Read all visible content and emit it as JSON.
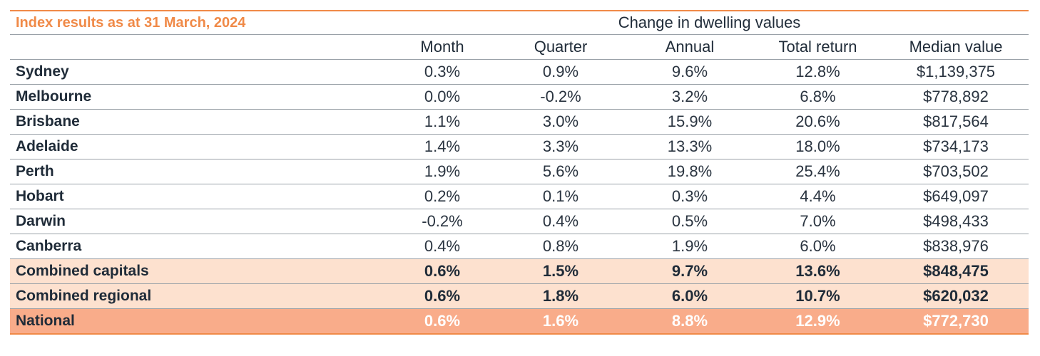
{
  "header": {
    "title": "Index results as at 31 March, 2024",
    "group_label": "Change in dwelling values"
  },
  "columns": [
    "Month",
    "Quarter",
    "Annual",
    "Total return",
    "Median value"
  ],
  "rows": [
    {
      "region": "Sydney",
      "month": "0.3%",
      "quarter": "0.9%",
      "annual": "9.6%",
      "total_return": "12.8%",
      "median": "$1,139,375"
    },
    {
      "region": "Melbourne",
      "month": "0.0%",
      "quarter": "-0.2%",
      "annual": "3.2%",
      "total_return": "6.8%",
      "median": "$778,892"
    },
    {
      "region": "Brisbane",
      "month": "1.1%",
      "quarter": "3.0%",
      "annual": "15.9%",
      "total_return": "20.6%",
      "median": "$817,564"
    },
    {
      "region": "Adelaide",
      "month": "1.4%",
      "quarter": "3.3%",
      "annual": "13.3%",
      "total_return": "18.0%",
      "median": "$734,173"
    },
    {
      "region": "Perth",
      "month": "1.9%",
      "quarter": "5.6%",
      "annual": "19.8%",
      "total_return": "25.4%",
      "median": "$703,502"
    },
    {
      "region": "Hobart",
      "month": "0.2%",
      "quarter": "0.1%",
      "annual": "0.3%",
      "total_return": "4.4%",
      "median": "$649,097"
    },
    {
      "region": "Darwin",
      "month": "-0.2%",
      "quarter": "0.4%",
      "annual": "0.5%",
      "total_return": "7.0%",
      "median": "$498,433"
    },
    {
      "region": "Canberra",
      "month": "0.4%",
      "quarter": "0.8%",
      "annual": "1.9%",
      "total_return": "6.0%",
      "median": "$838,976"
    },
    {
      "region": "Combined capitals",
      "month": "0.6%",
      "quarter": "1.5%",
      "annual": "9.7%",
      "total_return": "13.6%",
      "median": "$848,475"
    },
    {
      "region": "Combined regional",
      "month": "0.6%",
      "quarter": "1.8%",
      "annual": "6.0%",
      "total_return": "10.7%",
      "median": "$620,032"
    },
    {
      "region": "National",
      "month": "0.6%",
      "quarter": "1.6%",
      "annual": "8.8%",
      "total_return": "12.9%",
      "median": "$772,730"
    }
  ],
  "colors": {
    "accent": "#f08a48",
    "highlight_row": "#fde1cf",
    "national_row": "#f9ac8a",
    "text": "#1f2b38"
  }
}
